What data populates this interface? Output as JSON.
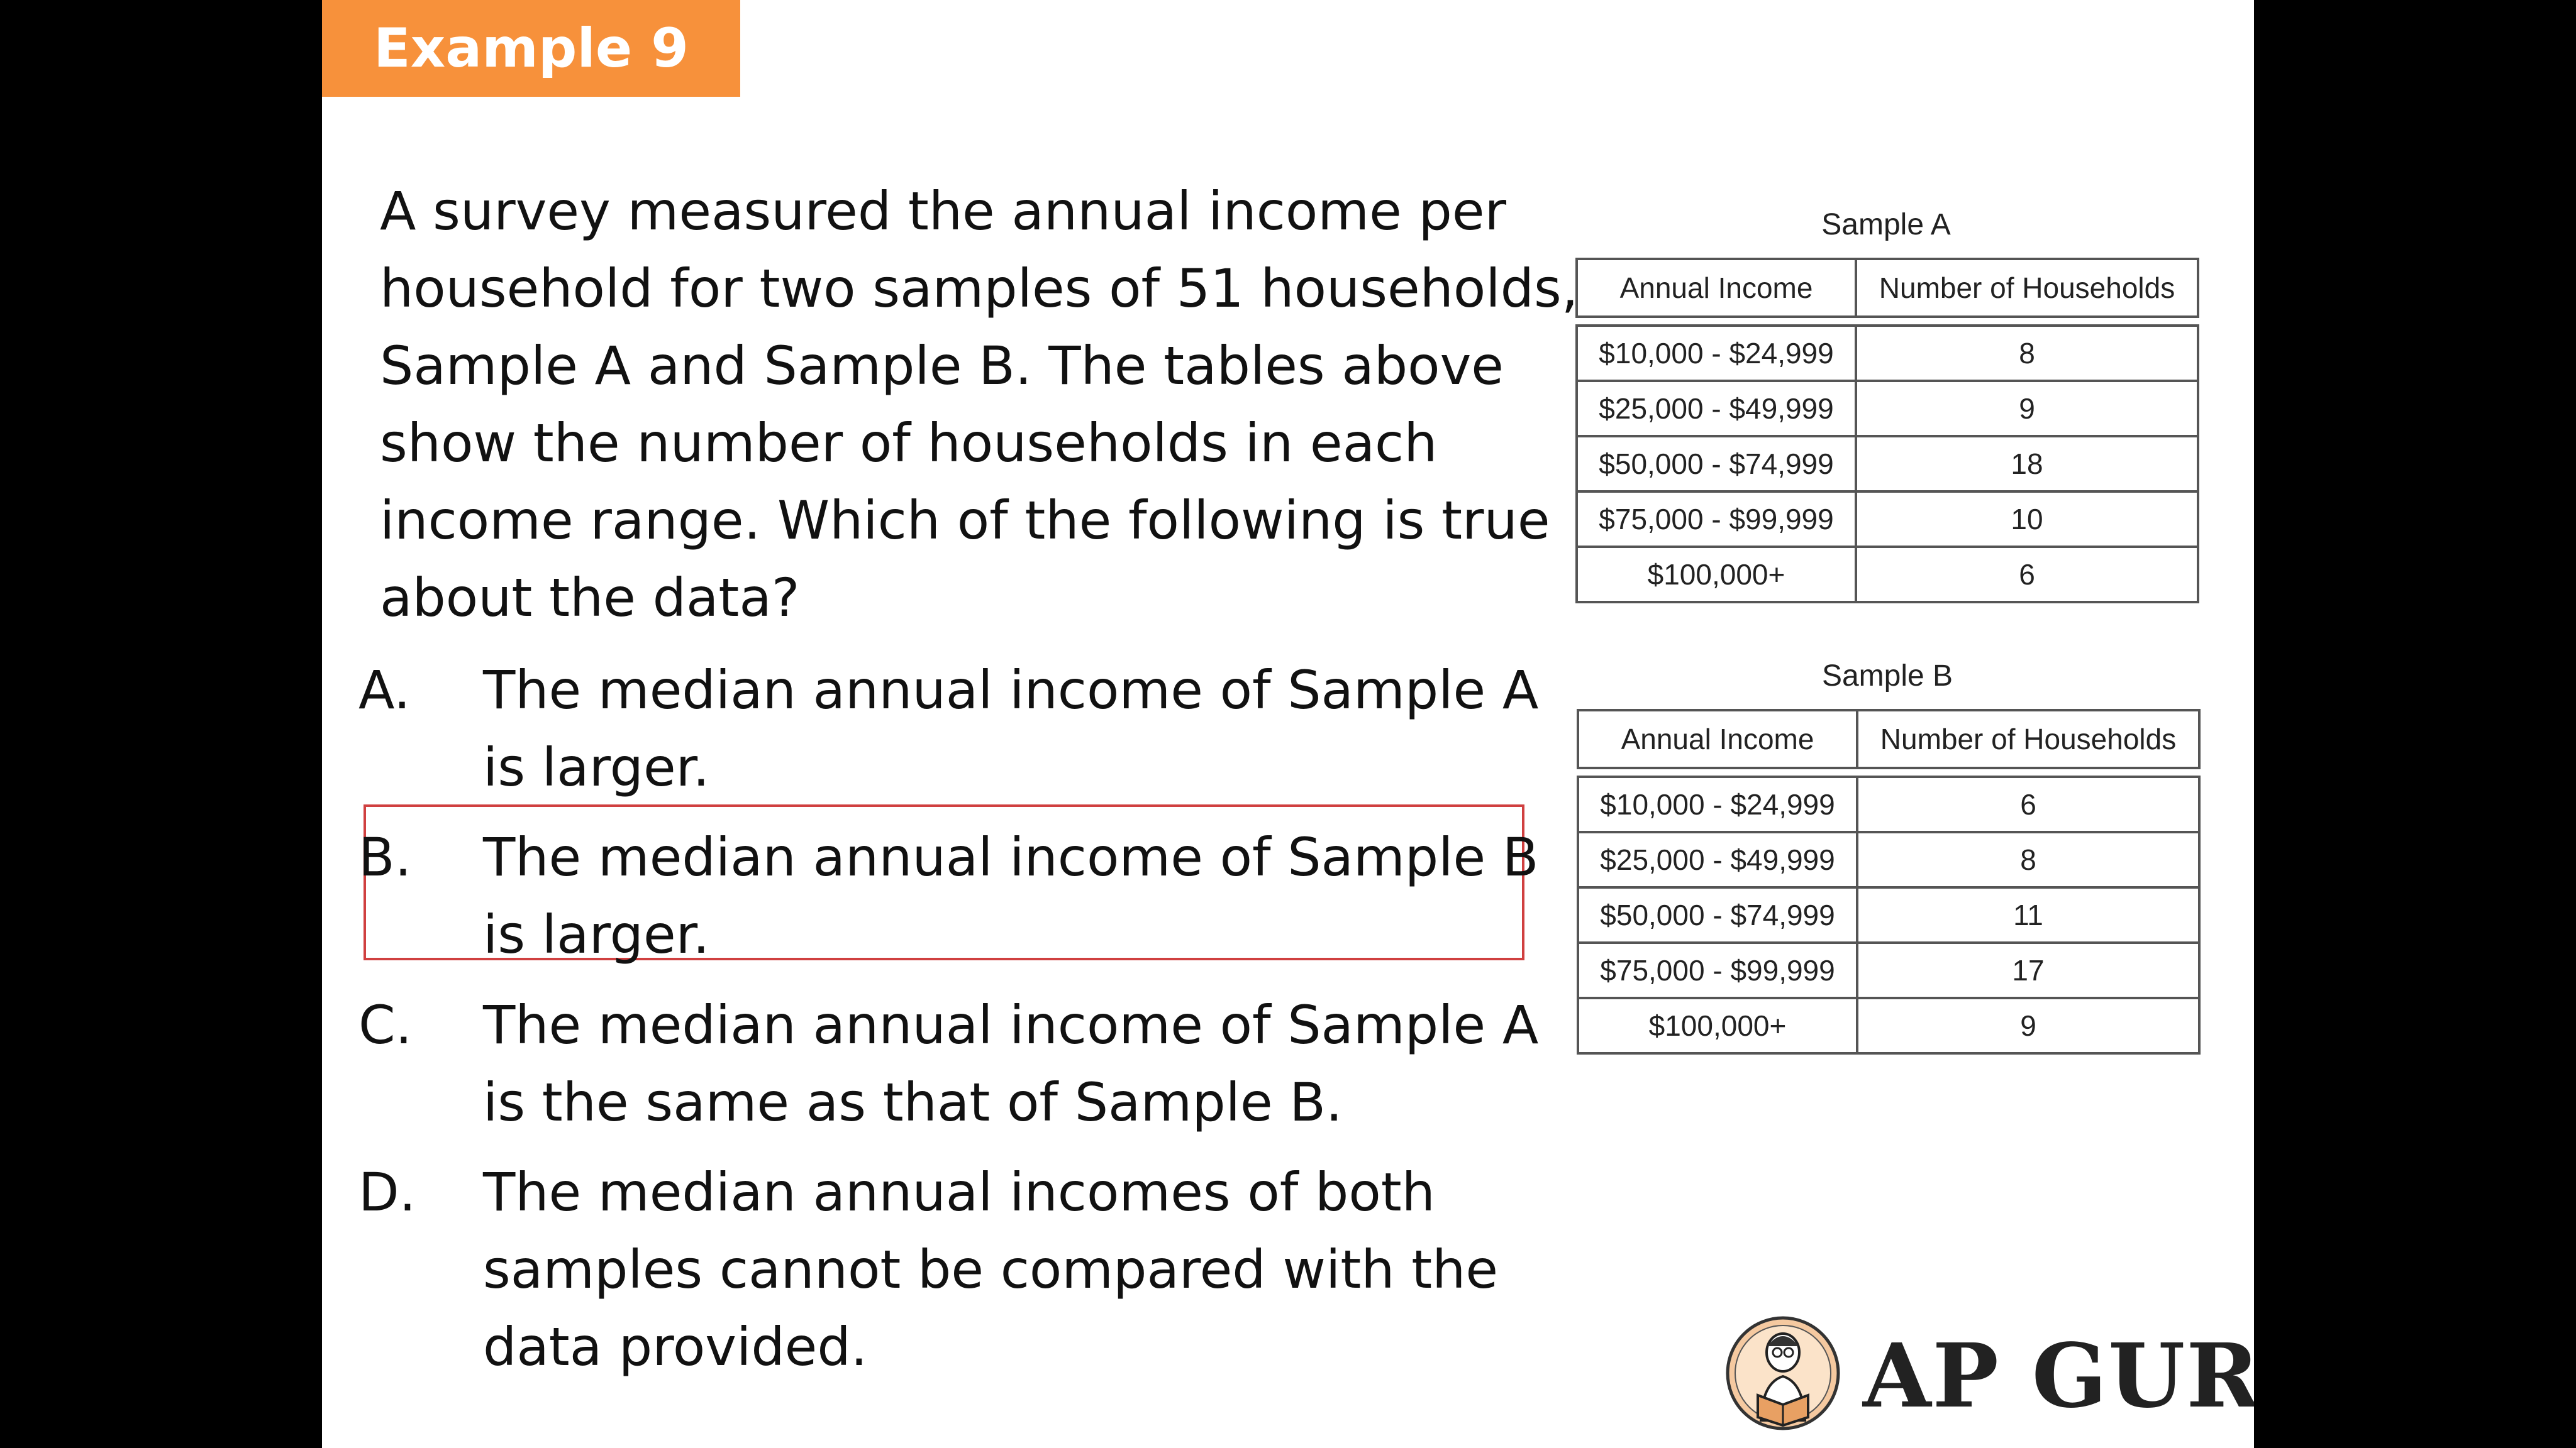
{
  "badge": {
    "label": "Example 9",
    "color": "#f7913b"
  },
  "question": "A survey measured the annual income per household for two samples of 51 households, Sample A and Sample B.  The tables above show the number of households in each income range.  Which of the following is true about the data?",
  "options": [
    {
      "letter": "A.",
      "text": "The median annual income of Sample A is larger."
    },
    {
      "letter": "B.",
      "text": "The median annual income of Sample B is larger.",
      "highlighted": true
    },
    {
      "letter": "C.",
      "text": "The median annual income of Sample A is the same as that of Sample B."
    },
    {
      "letter": "D.",
      "text": "The median annual incomes of both samples cannot be compared with the data provided."
    }
  ],
  "tables": [
    {
      "title": "Sample A",
      "headers": [
        "Annual Income",
        "Number of Households"
      ],
      "rows": [
        [
          "$10,000 - $24,999",
          "8"
        ],
        [
          "$25,000 - $49,999",
          "9"
        ],
        [
          "$50,000 - $74,999",
          "18"
        ],
        [
          "$75,000 - $99,999",
          "10"
        ],
        [
          "$100,000+",
          "6"
        ]
      ]
    },
    {
      "title": "Sample B",
      "headers": [
        "Annual Income",
        "Number of Households"
      ],
      "rows": [
        [
          "$10,000 - $24,999",
          "6"
        ],
        [
          "$25,000 - $49,999",
          "8"
        ],
        [
          "$50,000 - $74,999",
          "11"
        ],
        [
          "$75,000 - $99,999",
          "17"
        ],
        [
          "$100,000+",
          "9"
        ]
      ]
    }
  ],
  "brand": {
    "name": "AP GURU",
    "logo_icon": "reading-person-logo-icon"
  },
  "colors": {
    "highlight_border": "#d04040",
    "background": "#ffffff",
    "frame": "#000000"
  }
}
